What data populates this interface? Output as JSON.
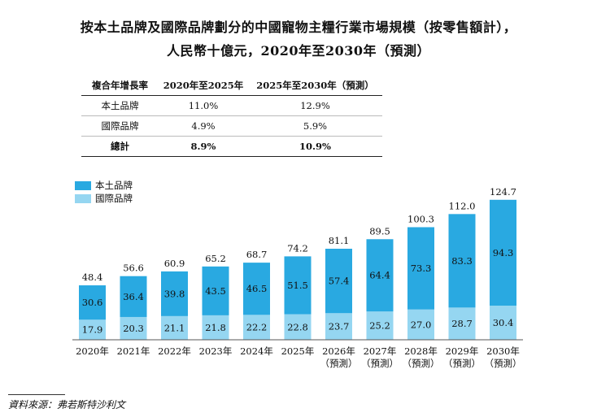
{
  "title_line1": "按本土品牌及國際品牌劃分的中國寵物主糧行業市場規模（按零售額計），",
  "title_line2": "人民幣十億元，2020年至2030年（預測）",
  "cagr_table": {
    "headers": [
      "複合年增長率",
      "2020年至2025年",
      "2025年至2030年（預測）"
    ],
    "rows": [
      {
        "label": "本土品牌",
        "v1": "11.0%",
        "v2": "12.9%"
      },
      {
        "label": "國際品牌",
        "v1": "4.9%",
        "v2": "5.9%"
      },
      {
        "label": "總計",
        "v1": "8.9%",
        "v2": "10.9%"
      }
    ]
  },
  "colors": {
    "domestic": "#29a9e1",
    "international": "#95d6f1"
  },
  "chart_data": {
    "type": "bar",
    "stacked": true,
    "categories": [
      "2020年",
      "2021年",
      "2022年",
      "2023年",
      "2024年",
      "2025年",
      "2026年",
      "2027年",
      "2028年",
      "2029年",
      "2030年"
    ],
    "forecast_label": "（預測）",
    "forecast_from_index": 6,
    "series": [
      {
        "name": "國際品牌",
        "values": [
          17.9,
          20.3,
          21.1,
          21.8,
          22.2,
          22.8,
          23.7,
          25.2,
          27.0,
          28.7,
          30.4
        ]
      },
      {
        "name": "本土品牌",
        "values": [
          30.6,
          36.4,
          39.8,
          43.5,
          46.5,
          51.5,
          57.4,
          64.4,
          73.3,
          83.3,
          94.3
        ]
      }
    ],
    "totals": [
      48.4,
      56.6,
      60.9,
      65.2,
      68.7,
      74.2,
      81.1,
      89.5,
      100.3,
      112.0,
      124.7
    ],
    "legend_position": "top-left"
  },
  "source": "資料來源：弗若斯特沙利文"
}
